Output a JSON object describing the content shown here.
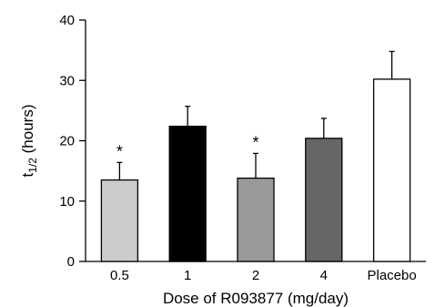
{
  "chart_data": {
    "type": "bar",
    "categories": [
      "0.5",
      "1",
      "2",
      "4",
      "Placebo"
    ],
    "values": [
      13.5,
      22.4,
      13.8,
      20.4,
      30.2
    ],
    "error_upper": [
      16.4,
      25.7,
      17.9,
      23.7,
      34.8
    ],
    "annotations": [
      "*",
      "",
      "*",
      "",
      ""
    ],
    "colors": [
      "#cccccc",
      "#000000",
      "#999999",
      "#666666",
      "#ffffff"
    ],
    "title": "",
    "xlabel": "Dose of R093877 (mg/day)",
    "ylabel": {
      "base": "t",
      "subscript": "1/2",
      "suffix": " (hours)"
    },
    "yticks": [
      0,
      10,
      20,
      30,
      40
    ],
    "ylim": [
      0,
      40
    ],
    "grid": false
  }
}
